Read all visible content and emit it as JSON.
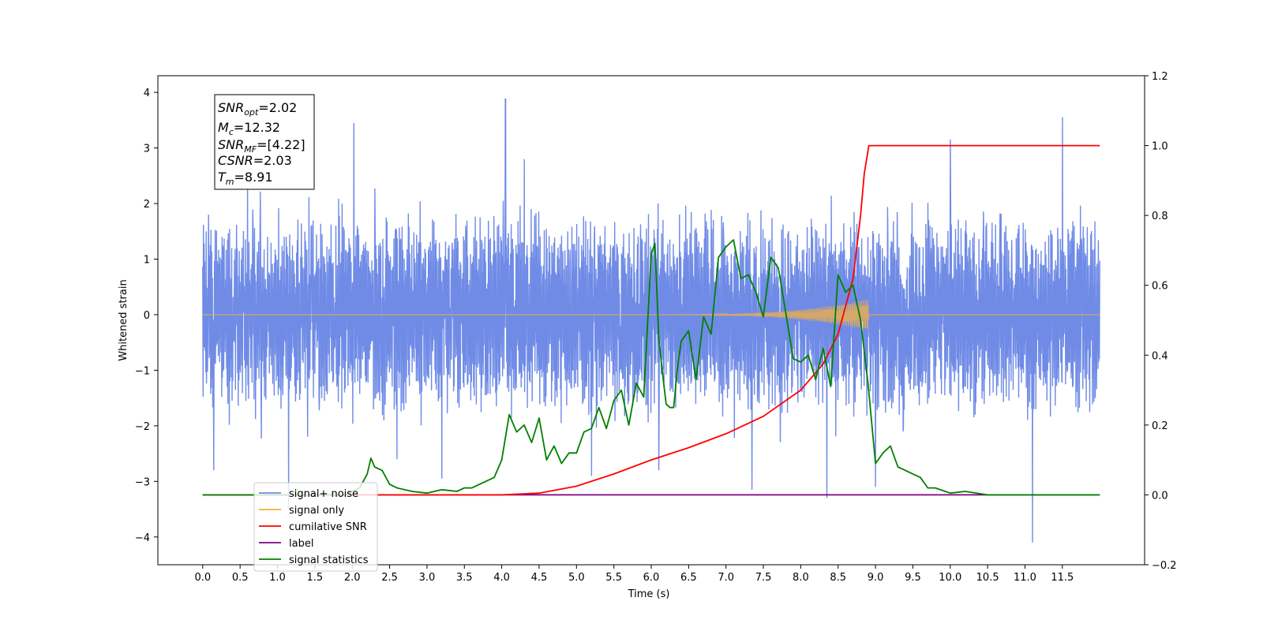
{
  "chart_data": {
    "type": "line",
    "xlabel": "Time (s)",
    "ylabel": "Whitened strain",
    "xlim": [
      -0.6,
      12.6
    ],
    "ylim": [
      -4.5,
      4.3
    ],
    "y2lim": [
      -0.2,
      1.2
    ],
    "x_ticks": [
      "0.0",
      "0.5",
      "1.0",
      "1.5",
      "2.0",
      "2.5",
      "3.0",
      "3.5",
      "4.0",
      "4.5",
      "5.0",
      "5.5",
      "6.0",
      "6.5",
      "7.0",
      "7.5",
      "8.0",
      "8.5",
      "9.0",
      "9.5",
      "10.0",
      "10.5",
      "11.0",
      "11.5"
    ],
    "y_ticks": [
      "4",
      "3",
      "2",
      "1",
      "0",
      "−1",
      "−2",
      "−3",
      "−4"
    ],
    "y2_ticks": [
      "1.2",
      "1.0",
      "0.8",
      "0.6",
      "0.4",
      "0.2",
      "0.0",
      "−0.2"
    ],
    "grid": false,
    "legend_position": "lower-left",
    "info_box": [
      {
        "sym": "SNR",
        "sub": "opt",
        "value": "=2.02"
      },
      {
        "sym": "M",
        "sub": "c",
        "value": "=12.32"
      },
      {
        "sym": "SNR",
        "sub": "MF",
        "value": "=[4.22]"
      },
      {
        "sym": "CSNR",
        "sub": "",
        "value": "=2.03"
      },
      {
        "sym": "T",
        "sub": "m",
        "value": "=8.91"
      }
    ],
    "series": [
      {
        "name": "signal+ noise",
        "color": "#6f8be6",
        "axis": "left",
        "description_range": [
          0.0,
          12.0
        ],
        "amplitude_envelope": 1.9,
        "spikes": [
          [
            0.08,
            1.8
          ],
          [
            0.15,
            -2.8
          ],
          [
            0.6,
            2.5
          ],
          [
            1.15,
            -3.5
          ],
          [
            2.02,
            3.45
          ],
          [
            2.6,
            -2.6
          ],
          [
            3.2,
            -2.95
          ],
          [
            4.05,
            3.88
          ],
          [
            4.3,
            2.8
          ],
          [
            5.2,
            -2.9
          ],
          [
            6.1,
            -2.8
          ],
          [
            7.35,
            -3.15
          ],
          [
            8.35,
            -3.3
          ],
          [
            9.0,
            -3.1
          ],
          [
            10.0,
            3.15
          ],
          [
            11.1,
            -4.1
          ],
          [
            11.5,
            3.55
          ]
        ]
      },
      {
        "name": "signal only",
        "color": "#f5b041",
        "axis": "left",
        "chirp_start": 6.0,
        "chirp_end": 8.91,
        "peak_amplitude": 0.28
      },
      {
        "name": "cumilative SNR",
        "color": "#ff0000",
        "axis": "right",
        "x": [
          0.0,
          3.0,
          4.0,
          4.5,
          5.0,
          5.5,
          6.0,
          6.5,
          7.0,
          7.5,
          8.0,
          8.3,
          8.5,
          8.7,
          8.8,
          8.85,
          8.9,
          8.91,
          12.0
        ],
        "y": [
          0.0,
          0.0,
          0.0,
          0.005,
          0.025,
          0.06,
          0.1,
          0.135,
          0.175,
          0.225,
          0.3,
          0.375,
          0.46,
          0.62,
          0.8,
          0.92,
          0.985,
          1.0,
          1.0
        ]
      },
      {
        "name": "label",
        "color": "#800080",
        "axis": "right",
        "x": [
          0.0,
          12.0
        ],
        "y": [
          0.0,
          0.0
        ]
      },
      {
        "name": "signal statistics",
        "color": "#008000",
        "axis": "right",
        "x": [
          0.0,
          1.9,
          2.1,
          2.2,
          2.25,
          2.3,
          2.4,
          2.5,
          2.6,
          2.8,
          3.0,
          3.2,
          3.4,
          3.5,
          3.6,
          3.8,
          3.9,
          4.0,
          4.1,
          4.2,
          4.3,
          4.4,
          4.5,
          4.6,
          4.7,
          4.8,
          4.9,
          5.0,
          5.1,
          5.2,
          5.3,
          5.4,
          5.5,
          5.6,
          5.7,
          5.8,
          5.9,
          6.0,
          6.05,
          6.1,
          6.15,
          6.2,
          6.25,
          6.3,
          6.35,
          6.4,
          6.5,
          6.6,
          6.7,
          6.8,
          6.9,
          7.0,
          7.1,
          7.2,
          7.3,
          7.4,
          7.5,
          7.6,
          7.7,
          7.8,
          7.9,
          8.0,
          8.1,
          8.2,
          8.3,
          8.4,
          8.5,
          8.6,
          8.7,
          8.8,
          8.9,
          9.0,
          9.1,
          9.2,
          9.3,
          9.4,
          9.5,
          9.6,
          9.7,
          9.8,
          10.0,
          10.2,
          10.5,
          10.8,
          12.0
        ],
        "y": [
          0.0,
          0.0,
          0.02,
          0.06,
          0.105,
          0.08,
          0.07,
          0.03,
          0.02,
          0.01,
          0.005,
          0.015,
          0.01,
          0.02,
          0.02,
          0.04,
          0.05,
          0.1,
          0.23,
          0.18,
          0.2,
          0.15,
          0.22,
          0.1,
          0.14,
          0.09,
          0.12,
          0.12,
          0.18,
          0.19,
          0.25,
          0.19,
          0.27,
          0.3,
          0.2,
          0.32,
          0.28,
          0.69,
          0.72,
          0.45,
          0.35,
          0.26,
          0.25,
          0.25,
          0.36,
          0.44,
          0.47,
          0.33,
          0.51,
          0.46,
          0.68,
          0.71,
          0.73,
          0.62,
          0.63,
          0.58,
          0.51,
          0.68,
          0.65,
          0.52,
          0.39,
          0.38,
          0.4,
          0.33,
          0.42,
          0.31,
          0.63,
          0.58,
          0.6,
          0.5,
          0.32,
          0.09,
          0.12,
          0.14,
          0.08,
          0.07,
          0.06,
          0.05,
          0.02,
          0.02,
          0.005,
          0.01,
          0.0,
          0.0,
          0.0
        ]
      }
    ]
  }
}
